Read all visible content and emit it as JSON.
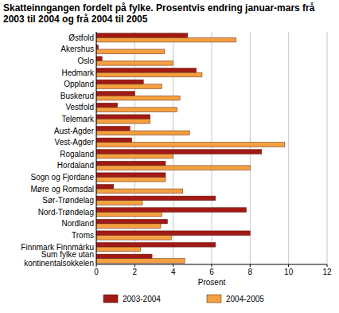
{
  "chart_data": {
    "type": "bar",
    "orientation": "horizontal",
    "title": "Skatteinngangen fordelt på fylke. Prosentvis endring januar-mars frå 2003 til 2004 og frå 2004 til 2005",
    "x_label": "Prosent",
    "categories": [
      "Østfold",
      "Akershus",
      "Oslo",
      "Hedmark",
      "Oppland",
      "Buskerud",
      "Vestfold",
      "Telemark",
      "Aust-Agder",
      "Vest-Agder",
      "Rogaland",
      "Hordaland",
      "Sogn og Fjordane",
      "Møre og Romsdal",
      "Sør-Trøndelag",
      "Nord-Trøndelag",
      "Nordland",
      "Troms",
      "Finnmark Finnmárku",
      "Sum fylke utan kontinentalsokkelen"
    ],
    "series": [
      {
        "name": "2003-2004",
        "color": "#a11a16",
        "values": [
          4.75,
          0.1,
          0.3,
          5.2,
          2.45,
          2.0,
          1.1,
          2.8,
          1.75,
          1.85,
          8.6,
          3.6,
          3.6,
          0.9,
          6.2,
          7.8,
          3.7,
          8.0,
          6.2,
          2.9
        ]
      },
      {
        "name": "2004-2005",
        "color": "#f5a040",
        "values": [
          7.27,
          3.55,
          4.0,
          5.5,
          3.4,
          4.35,
          4.2,
          2.8,
          4.85,
          9.8,
          4.0,
          8.0,
          3.6,
          4.5,
          2.4,
          3.4,
          3.35,
          3.9,
          2.3,
          4.6
        ]
      }
    ],
    "xlim": [
      0,
      12
    ],
    "xticks": [
      0,
      2,
      4,
      6,
      8,
      10,
      12
    ],
    "grid": true,
    "legend": "bottom"
  }
}
